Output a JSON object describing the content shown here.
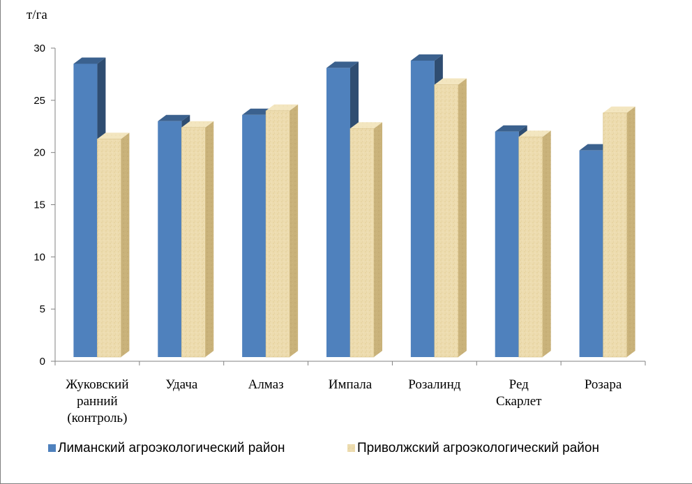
{
  "chart_data": {
    "type": "bar",
    "ylabel": "т/га",
    "ylim": [
      0,
      30
    ],
    "yticks": [
      0,
      5,
      10,
      15,
      20,
      25,
      30
    ],
    "grid": false,
    "legend_position": "bottom",
    "categories": [
      [
        "Жуковский",
        "ранний",
        "(контроль)"
      ],
      [
        "Удача"
      ],
      [
        "Алмаз"
      ],
      [
        "Импала"
      ],
      [
        "Розалинд"
      ],
      [
        "Ред",
        "Скарлет"
      ],
      [
        "Розара"
      ]
    ],
    "series": [
      {
        "name": "Лиманский агроэкологический  район",
        "color": "#4f81bd",
        "values": [
          28.5,
          23.0,
          23.6,
          28.1,
          28.8,
          22.0,
          20.2
        ]
      },
      {
        "name": "Приволжский агроэкологический район",
        "color": "#eddcaf",
        "values": [
          21.3,
          22.4,
          24.0,
          22.3,
          26.5,
          21.5,
          23.8
        ]
      }
    ]
  }
}
